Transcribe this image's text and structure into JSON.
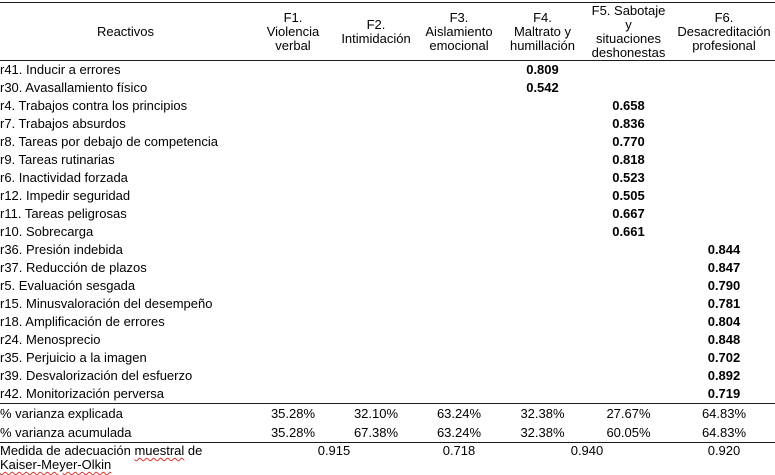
{
  "header": {
    "reactivos": "Reactivos",
    "factors": [
      "F1.\nViolencia\nverbal",
      "F2.\nIntimidación",
      "F3.\nAislamiento\nemocional",
      "F4.\nMaltrato y\nhumillación",
      "F5. Sabotaje\ny\nsituaciones\ndeshonestas",
      "F6.\nDesacreditación\nprofesional"
    ]
  },
  "rows": [
    {
      "label": "r41. Inducir a errores",
      "values": [
        "",
        "",
        "",
        "0.809",
        "",
        ""
      ]
    },
    {
      "label": "r30. Avasallamiento físico",
      "values": [
        "",
        "",
        "",
        "0.542",
        "",
        ""
      ]
    },
    {
      "label": "r4. Trabajos contra los principios",
      "values": [
        "",
        "",
        "",
        "",
        "0.658",
        ""
      ]
    },
    {
      "label": "r7. Trabajos absurdos",
      "values": [
        "",
        "",
        "",
        "",
        "0.836",
        ""
      ]
    },
    {
      "label": "r8. Tareas por debajo de competencia",
      "values": [
        "",
        "",
        "",
        "",
        "0.770",
        ""
      ]
    },
    {
      "label": "r9. Tareas rutinarias",
      "values": [
        "",
        "",
        "",
        "",
        "0.818",
        ""
      ]
    },
    {
      "label": "r6. Inactividad forzada",
      "values": [
        "",
        "",
        "",
        "",
        "0.523",
        ""
      ]
    },
    {
      "label": "r12. Impedir seguridad",
      "values": [
        "",
        "",
        "",
        "",
        "0.505",
        ""
      ]
    },
    {
      "label": "r11. Tareas peligrosas",
      "values": [
        "",
        "",
        "",
        "",
        "0.667",
        ""
      ]
    },
    {
      "label": "r10. Sobrecarga",
      "values": [
        "",
        "",
        "",
        "",
        "0.661",
        ""
      ]
    },
    {
      "label": "r36. Presión indebida",
      "values": [
        "",
        "",
        "",
        "",
        "",
        "0.844"
      ]
    },
    {
      "label": "r37. Reducción de plazos",
      "values": [
        "",
        "",
        "",
        "",
        "",
        "0.847"
      ]
    },
    {
      "label": "r5. Evaluación sesgada",
      "values": [
        "",
        "",
        "",
        "",
        "",
        "0.790"
      ]
    },
    {
      "label": "r15. Minusvaloración del desempeño",
      "values": [
        "",
        "",
        "",
        "",
        "",
        "0.781"
      ]
    },
    {
      "label": "r18. Amplificación de errores",
      "values": [
        "",
        "",
        "",
        "",
        "",
        "0.804"
      ]
    },
    {
      "label": "r24. Menosprecio",
      "values": [
        "",
        "",
        "",
        "",
        "",
        "0.848"
      ]
    },
    {
      "label": "r35. Perjuicio a la imagen",
      "values": [
        "",
        "",
        "",
        "",
        "",
        "0.702"
      ]
    },
    {
      "label": "r39. Desvalorización del esfuerzo",
      "values": [
        "",
        "",
        "",
        "",
        "",
        "0.892"
      ]
    },
    {
      "label": "r42. Monitorización perversa",
      "values": [
        "",
        "",
        "",
        "",
        "",
        "0.719"
      ]
    }
  ],
  "footer": {
    "variance_explained": {
      "label": "% varianza explicada",
      "values": [
        "35.28%",
        "32.10%",
        "63.24%",
        "32.38%",
        "27.67%",
        "64.83%"
      ]
    },
    "variance_cumulative": {
      "label": "% varianza acumulada",
      "values": [
        "35.28%",
        "67.38%",
        "63.24%",
        "32.38%",
        "60.05%",
        "64.83%"
      ]
    },
    "kmo": {
      "label_parts": [
        {
          "text": "Medida de adecuación ",
          "spell": false
        },
        {
          "text": "muestral",
          "spell": true
        },
        {
          "text": " de\n",
          "spell": false
        },
        {
          "text": "Kaiser-Meyer-Olkin",
          "spell": true
        }
      ],
      "values": [
        {
          "value": "0.915",
          "span": 2
        },
        {
          "value": "0.718",
          "span": 1
        },
        {
          "value": "0.940",
          "span": 2
        },
        {
          "value": "0.920",
          "span": 1
        }
      ]
    }
  },
  "colors": {
    "text": "#000000",
    "rule": "#1a1a1a",
    "spellcheck_underline": "#e0312e"
  }
}
